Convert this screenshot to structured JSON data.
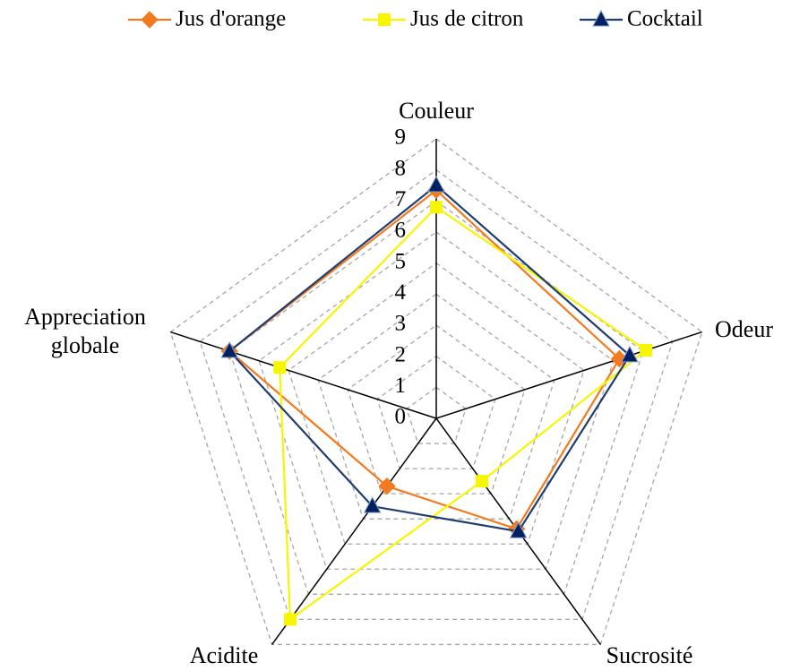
{
  "chart_data": {
    "type": "radar",
    "categories": [
      "Couleur",
      "Odeur",
      "Sucrosité",
      "Acidite",
      "Appreciation globale"
    ],
    "series": [
      {
        "name": "Jus d'orange",
        "color": "#f47a20",
        "marker": "diamond",
        "values": [
          7.35,
          6.2,
          4.4,
          2.7,
          7.0
        ]
      },
      {
        "name": "Jus de citron",
        "color": "#f7f500",
        "marker": "square",
        "values": [
          6.8,
          7.1,
          2.5,
          8.0,
          5.3
        ]
      },
      {
        "name": "Cocktail",
        "color": "#1f3d6e",
        "marker": "triangle",
        "values": [
          7.5,
          6.55,
          4.5,
          3.5,
          7.0
        ]
      }
    ],
    "rlim": [
      0,
      9
    ],
    "rticks": [
      0,
      1,
      2,
      3,
      4,
      5,
      6,
      7,
      8,
      9
    ],
    "grid": true,
    "legend": "top"
  }
}
